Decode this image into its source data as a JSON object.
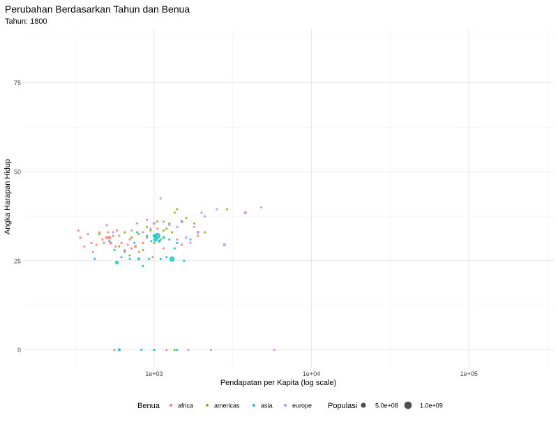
{
  "chart_data": {
    "type": "scatter",
    "title": "Perubahan Berdasarkan Tahun dan Benua",
    "subtitle": "Tahun: 1800",
    "xlabel": "Pendapatan per Kapita (log scale)",
    "ylabel": "Angka Harapan Hidup",
    "x_scale": "log10",
    "xlim": [
      150,
      350000
    ],
    "ylim": [
      -5,
      90
    ],
    "x_ticks": [
      {
        "value": 1000,
        "label": "1e+03"
      },
      {
        "value": 10000,
        "label": "1e+04"
      },
      {
        "value": 100000,
        "label": "1e+05"
      }
    ],
    "x_minor": [
      316,
      3162,
      31623,
      316228
    ],
    "y_ticks": [
      {
        "value": 0,
        "label": "0"
      },
      {
        "value": 25,
        "label": "25"
      },
      {
        "value": 50,
        "label": "50"
      },
      {
        "value": 75,
        "label": "75"
      }
    ],
    "y_minor": [
      12.5,
      37.5,
      62.5,
      87.5
    ],
    "grid": true,
    "legend": {
      "placement": "bottom",
      "color_title": "Benua",
      "size_title": "Populasi",
      "size_entries": [
        {
          "label": "5.0e+08",
          "value": 500000000
        },
        {
          "label": "1.0e+09",
          "value": 1000000000
        }
      ]
    },
    "series": [
      {
        "name": "africa",
        "color": "#F8766D",
        "points": [
          [
            330,
            33.5,
            1
          ],
          [
            340,
            31.5,
            1
          ],
          [
            360,
            29.0,
            1
          ],
          [
            380,
            32.5,
            1
          ],
          [
            400,
            30.0,
            1
          ],
          [
            410,
            27.5,
            1
          ],
          [
            430,
            29.5,
            1
          ],
          [
            450,
            33.0,
            1
          ],
          [
            470,
            31.0,
            1
          ],
          [
            480,
            30.0,
            1
          ],
          [
            500,
            31.5,
            2
          ],
          [
            510,
            33.0,
            1
          ],
          [
            520,
            31.5,
            3
          ],
          [
            530,
            30.0,
            2
          ],
          [
            550,
            32.0,
            1
          ],
          [
            570,
            29.0,
            1
          ],
          [
            580,
            33.5,
            1
          ],
          [
            600,
            32.0,
            1
          ],
          [
            620,
            30.0,
            1
          ],
          [
            650,
            28.0,
            1
          ],
          [
            680,
            29.5,
            1
          ],
          [
            700,
            31.0,
            1
          ],
          [
            720,
            28.5,
            1
          ],
          [
            760,
            29.0,
            2
          ],
          [
            800,
            27.5,
            1
          ],
          [
            850,
            30.0,
            1
          ],
          [
            900,
            31.5,
            1
          ],
          [
            980,
            26.0,
            1
          ],
          [
            1050,
            34.0,
            1
          ],
          [
            1150,
            28.5,
            1
          ],
          [
            1400,
            31.0,
            1
          ],
          [
            1500,
            29.5,
            1
          ],
          [
            1900,
            32.0,
            1
          ],
          [
            560,
            0,
            1
          ],
          [
            1200,
            0,
            1
          ]
        ]
      },
      {
        "name": "americas",
        "color": "#7CAE00",
        "points": [
          [
            450,
            32.5,
            1
          ],
          [
            600,
            29.0,
            1
          ],
          [
            650,
            33.0,
            1
          ],
          [
            700,
            26.5,
            1
          ],
          [
            720,
            31.5,
            1
          ],
          [
            800,
            32.5,
            1
          ],
          [
            850,
            28.0,
            1
          ],
          [
            900,
            34.5,
            1
          ],
          [
            950,
            33.5,
            1
          ],
          [
            1000,
            30.0,
            1
          ],
          [
            1050,
            36.0,
            1
          ],
          [
            1100,
            31.0,
            1
          ],
          [
            1150,
            33.5,
            1
          ],
          [
            1200,
            34.0,
            1
          ],
          [
            1250,
            35.5,
            1
          ],
          [
            1300,
            33.0,
            1
          ],
          [
            1350,
            38.5,
            1
          ],
          [
            1400,
            39.5,
            1
          ],
          [
            1600,
            37.0,
            1
          ],
          [
            1800,
            35.5,
            1
          ],
          [
            2100,
            33.0,
            1
          ],
          [
            2900,
            39.5,
            1
          ],
          [
            1350,
            0,
            1
          ]
        ]
      },
      {
        "name": "asia",
        "color": "#00BFC4",
        "points": [
          [
            420,
            25.5,
            1
          ],
          [
            520,
            30.5,
            1
          ],
          [
            560,
            28.0,
            1
          ],
          [
            580,
            24.5,
            3
          ],
          [
            620,
            26.0,
            1
          ],
          [
            650,
            27.5,
            1
          ],
          [
            700,
            25.5,
            1
          ],
          [
            750,
            30.0,
            1
          ],
          [
            780,
            33.0,
            1
          ],
          [
            800,
            25.5,
            2
          ],
          [
            850,
            23.5,
            1
          ],
          [
            900,
            32.0,
            1
          ],
          [
            930,
            25.5,
            1
          ],
          [
            960,
            30.5,
            1
          ],
          [
            1000,
            32.0,
            2
          ],
          [
            1020,
            31.0,
            4
          ],
          [
            1050,
            32.0,
            6
          ],
          [
            1080,
            30.5,
            2
          ],
          [
            1100,
            25.5,
            1
          ],
          [
            1150,
            31.5,
            2
          ],
          [
            1200,
            26.0,
            1
          ],
          [
            1250,
            31.0,
            1
          ],
          [
            1300,
            25.5,
            5
          ],
          [
            1350,
            28.5,
            1
          ],
          [
            1400,
            30.0,
            1
          ],
          [
            1500,
            36.0,
            1
          ],
          [
            1550,
            25.0,
            1
          ],
          [
            1700,
            31.0,
            1
          ],
          [
            600,
            0,
            2
          ],
          [
            830,
            0,
            1
          ],
          [
            1000,
            0,
            1
          ],
          [
            1400,
            0,
            1
          ]
        ]
      },
      {
        "name": "europe",
        "color": "#C77CFF",
        "points": [
          [
            500,
            35.0,
            1
          ],
          [
            550,
            33.0,
            1
          ],
          [
            720,
            33.5,
            1
          ],
          [
            780,
            35.5,
            1
          ],
          [
            850,
            33.0,
            1
          ],
          [
            900,
            36.5,
            1
          ],
          [
            950,
            34.0,
            1
          ],
          [
            1000,
            35.5,
            2
          ],
          [
            1100,
            42.5,
            1
          ],
          [
            1150,
            36.0,
            1
          ],
          [
            1250,
            35.0,
            1
          ],
          [
            1400,
            34.5,
            1
          ],
          [
            1500,
            36.0,
            2
          ],
          [
            1600,
            31.5,
            1
          ],
          [
            1700,
            30.0,
            1
          ],
          [
            1800,
            34.5,
            1
          ],
          [
            1900,
            33.0,
            2
          ],
          [
            2000,
            38.5,
            1
          ],
          [
            2100,
            37.5,
            1
          ],
          [
            2500,
            39.5,
            1
          ],
          [
            2800,
            29.5,
            2
          ],
          [
            3800,
            38.5,
            2
          ],
          [
            4800,
            40.0,
            1
          ],
          [
            1650,
            0,
            1
          ],
          [
            2300,
            0,
            1
          ],
          [
            5800,
            0,
            1
          ]
        ]
      }
    ]
  }
}
